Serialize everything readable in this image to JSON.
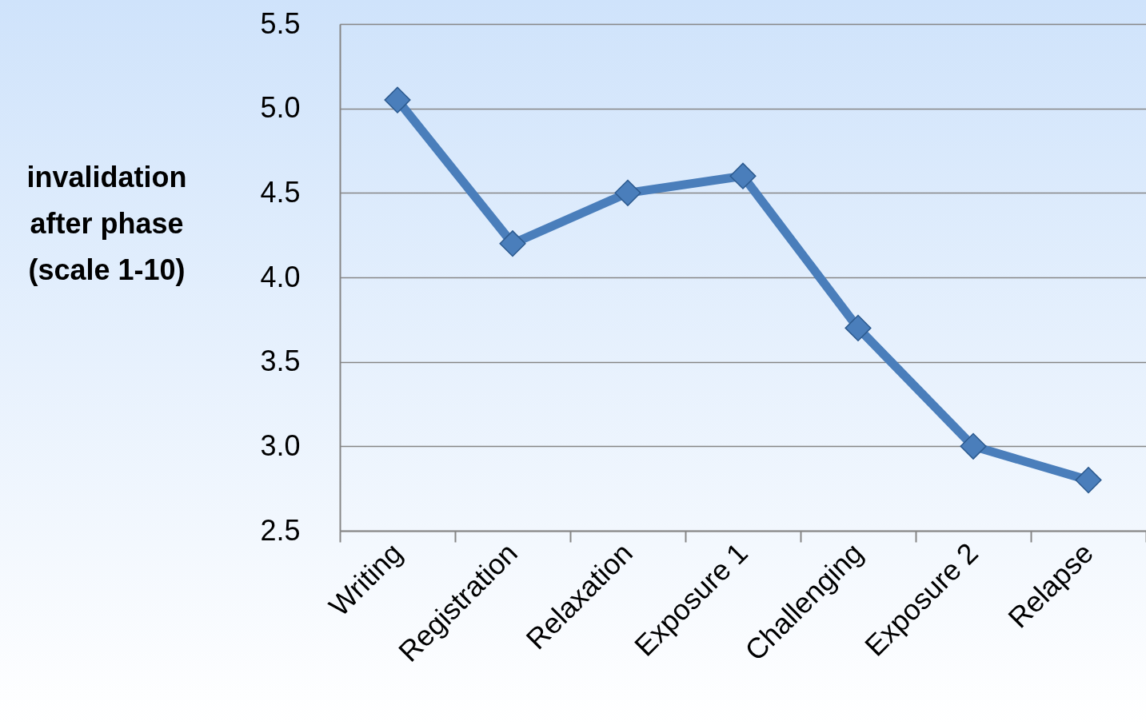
{
  "chart_data": {
    "type": "line",
    "ylabel": "invalidation after phase (scale 1-10)",
    "categories": [
      "Writing",
      "Registration",
      "Relaxation",
      "Exposure 1",
      "Challenging",
      "Exposure 2",
      "Relapse"
    ],
    "series": [
      {
        "color": "#4a7ebb",
        "values": [
          5.05,
          4.2,
          4.5,
          4.6,
          3.7,
          3.0,
          2.8
        ]
      }
    ],
    "ylim": [
      2.5,
      5.5
    ],
    "yticks": [
      {
        "value": 2.5,
        "label": "2.5"
      },
      {
        "value": 3,
        "label": "3.0"
      },
      {
        "value": 3.5,
        "label": "3.5"
      },
      {
        "value": 4,
        "label": "4.0"
      },
      {
        "value": 4.5,
        "label": "4.5"
      },
      {
        "value": 5,
        "label": "5.0"
      },
      {
        "value": 5.5,
        "label": "5.5"
      }
    ],
    "grid": "y",
    "marker": "diamond",
    "line_style": "solid"
  }
}
